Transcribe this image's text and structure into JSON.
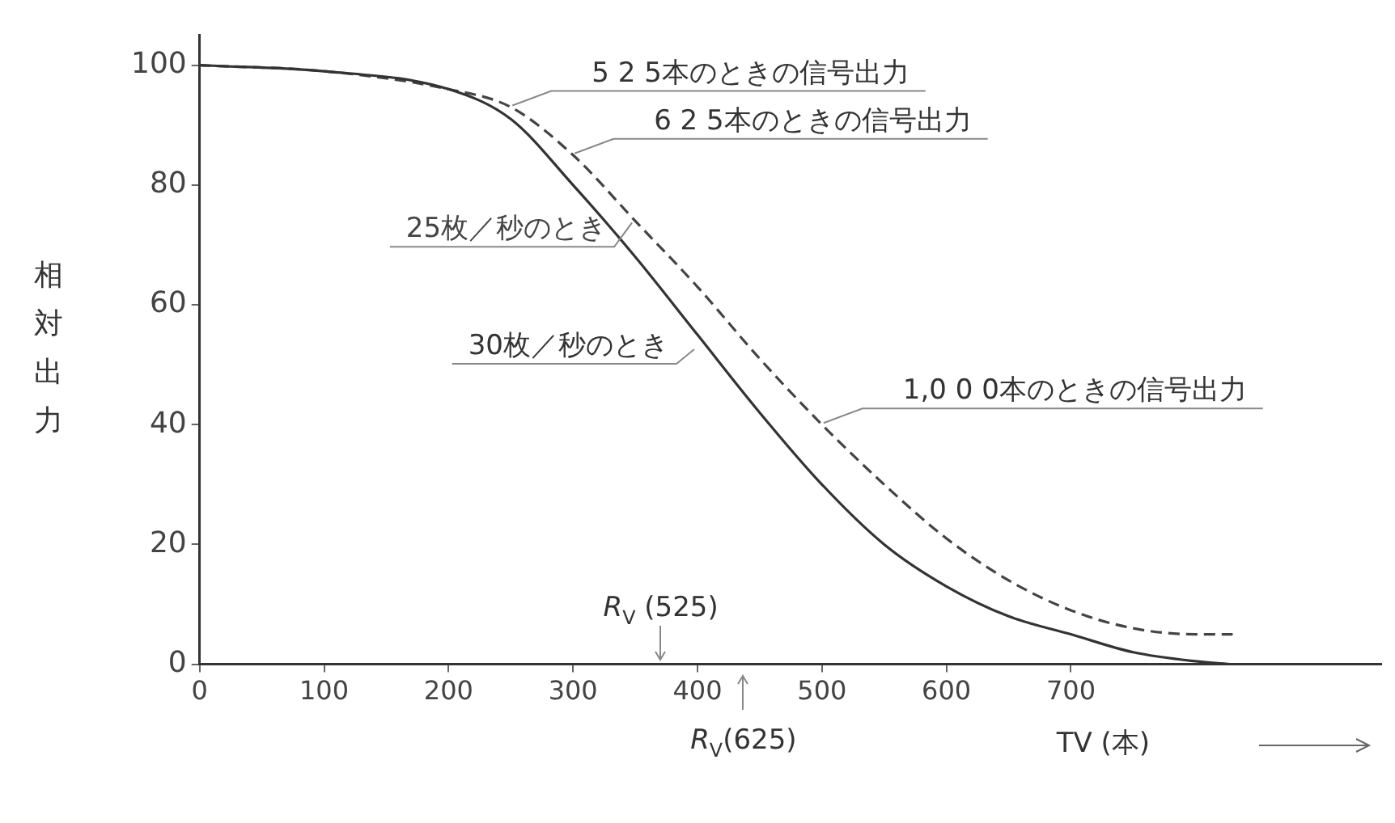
{
  "chart_data": {
    "type": "line",
    "ylabel": "相対出力",
    "xlabel": "TV (本)",
    "xlim": [
      0,
      950
    ],
    "xticks": [
      0,
      100,
      200,
      300,
      400,
      500,
      600,
      700
    ],
    "ylim": [
      0,
      105
    ],
    "yticks": [
      0,
      20,
      40,
      60,
      80,
      100
    ],
    "grid": false,
    "legend": false,
    "marker": "none",
    "series": [
      {
        "name": "30枚／秒のとき",
        "color": "#333333",
        "line_style": "solid",
        "x": [
          0,
          100,
          200,
          250,
          300,
          350,
          400,
          450,
          500,
          550,
          600,
          650,
          700,
          750,
          800,
          830
        ],
        "values": [
          100,
          99,
          96,
          91,
          80,
          68,
          55,
          42,
          30,
          20,
          13,
          8,
          5,
          2,
          0.5,
          0
        ]
      },
      {
        "name": "25枚／秒のとき",
        "color": "#444444",
        "line_style": "dashed",
        "x": [
          0,
          100,
          200,
          250,
          300,
          350,
          400,
          450,
          500,
          550,
          600,
          650,
          700,
          750,
          800,
          830
        ],
        "values": [
          100,
          99,
          96,
          93,
          85,
          74,
          63,
          51,
          40,
          30,
          21,
          14,
          9,
          6,
          5,
          5
        ]
      }
    ],
    "annotations": [
      {
        "text": "5 2 5本のときの信号出力",
        "x": 250,
        "y": 93
      },
      {
        "text": "6 2 5本のときの信号出力",
        "x": 300,
        "y": 85
      },
      {
        "text": "1,0 0 0本のときの信号出力",
        "x": 500,
        "y": 40
      },
      "R$_{V}$ (525)",
      "R$_{V}$(625)"
    ]
  }
}
